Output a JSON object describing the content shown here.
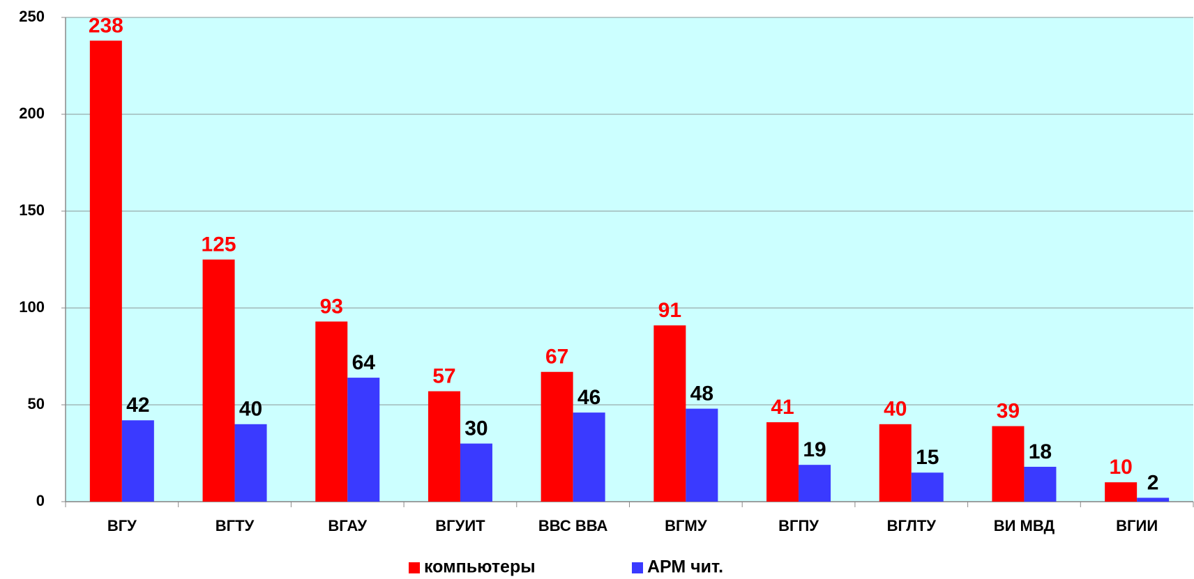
{
  "chart_data": {
    "type": "bar",
    "categories": [
      "ВГУ",
      "ВГТУ",
      "ВГАУ",
      "ВГУИТ",
      "ВВС ВВА",
      "ВГМУ",
      "ВГПУ",
      "ВГЛТУ",
      "ВИ МВД",
      "ВГИИ"
    ],
    "series": [
      {
        "name": "компьютеры",
        "color": "#ff0000",
        "label_color": "#ff0000",
        "values": [
          238,
          125,
          93,
          57,
          67,
          91,
          41,
          40,
          39,
          10
        ]
      },
      {
        "name": "АРМ чит.",
        "color": "#3a3aff",
        "label_color": "#000000",
        "values": [
          42,
          40,
          64,
          30,
          46,
          48,
          19,
          15,
          18,
          2
        ]
      }
    ],
    "ylim": [
      0,
      250
    ],
    "yticks": [
      0,
      50,
      100,
      150,
      200,
      250
    ],
    "grid": true,
    "legend": "bottom"
  }
}
